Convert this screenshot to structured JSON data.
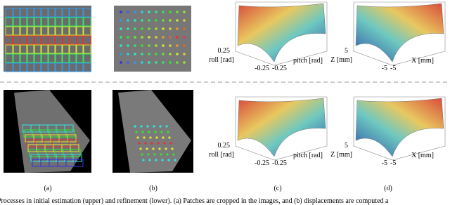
{
  "figure": {
    "panels": [
      {
        "label": "(a)"
      },
      {
        "label": "(b)"
      },
      {
        "label": "(c)"
      },
      {
        "label": "(d)"
      }
    ],
    "plots": [
      {
        "end_tick": "0.25",
        "left_axis": "roll [rad]",
        "left_start": "-0.25",
        "right_start": "-0.25",
        "right_axis": "pitch [rad]"
      },
      {
        "end_tick": "5",
        "left_axis": "Z [mm]",
        "left_start": "-5",
        "right_start": "-5",
        "right_axis": "X [mm]"
      },
      {
        "end_tick": "0.25",
        "left_axis": "roll [rad]",
        "left_start": "-0.25",
        "right_start": "-0.25",
        "right_axis": "pitch [rad]"
      },
      {
        "end_tick": "5",
        "left_axis": "Z [mm]",
        "left_start": "-5",
        "right_start": "-5",
        "right_axis": "X [mm]"
      }
    ],
    "caption": "Processes in initial estimation (upper) and refinement (lower). (a) Patches are cropped in the images, and (b) displacements are computed a"
  }
}
